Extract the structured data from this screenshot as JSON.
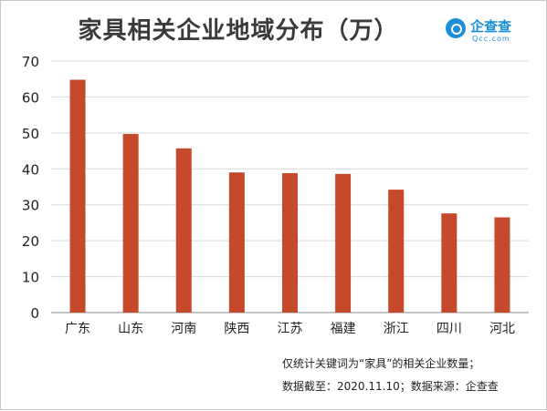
{
  "title": "家具相关企业地域分布（万）",
  "logo": {
    "cn": "企查查",
    "en": "Qcc.com",
    "color": "#1a8fd6"
  },
  "footnote": {
    "line1": "仅统计关键词为“家具”的相关企业数量；",
    "line2": "数据截至：2020.11.10；数据来源：企查查"
  },
  "chart_data": {
    "type": "bar",
    "title": "家具相关企业地域分布（万）",
    "categories": [
      "广东",
      "山东",
      "河南",
      "陕西",
      "江苏",
      "福建",
      "浙江",
      "四川",
      "河北"
    ],
    "values": [
      64.8,
      49.7,
      45.7,
      39.0,
      38.8,
      38.6,
      34.2,
      27.6,
      26.5
    ],
    "ylim": [
      0,
      70
    ],
    "yticks": [
      0,
      10,
      20,
      30,
      40,
      50,
      60,
      70
    ],
    "grid": true,
    "bar_color": "#c5492a",
    "grid_color": "#d9d9d9",
    "axis_color": "#888888"
  }
}
